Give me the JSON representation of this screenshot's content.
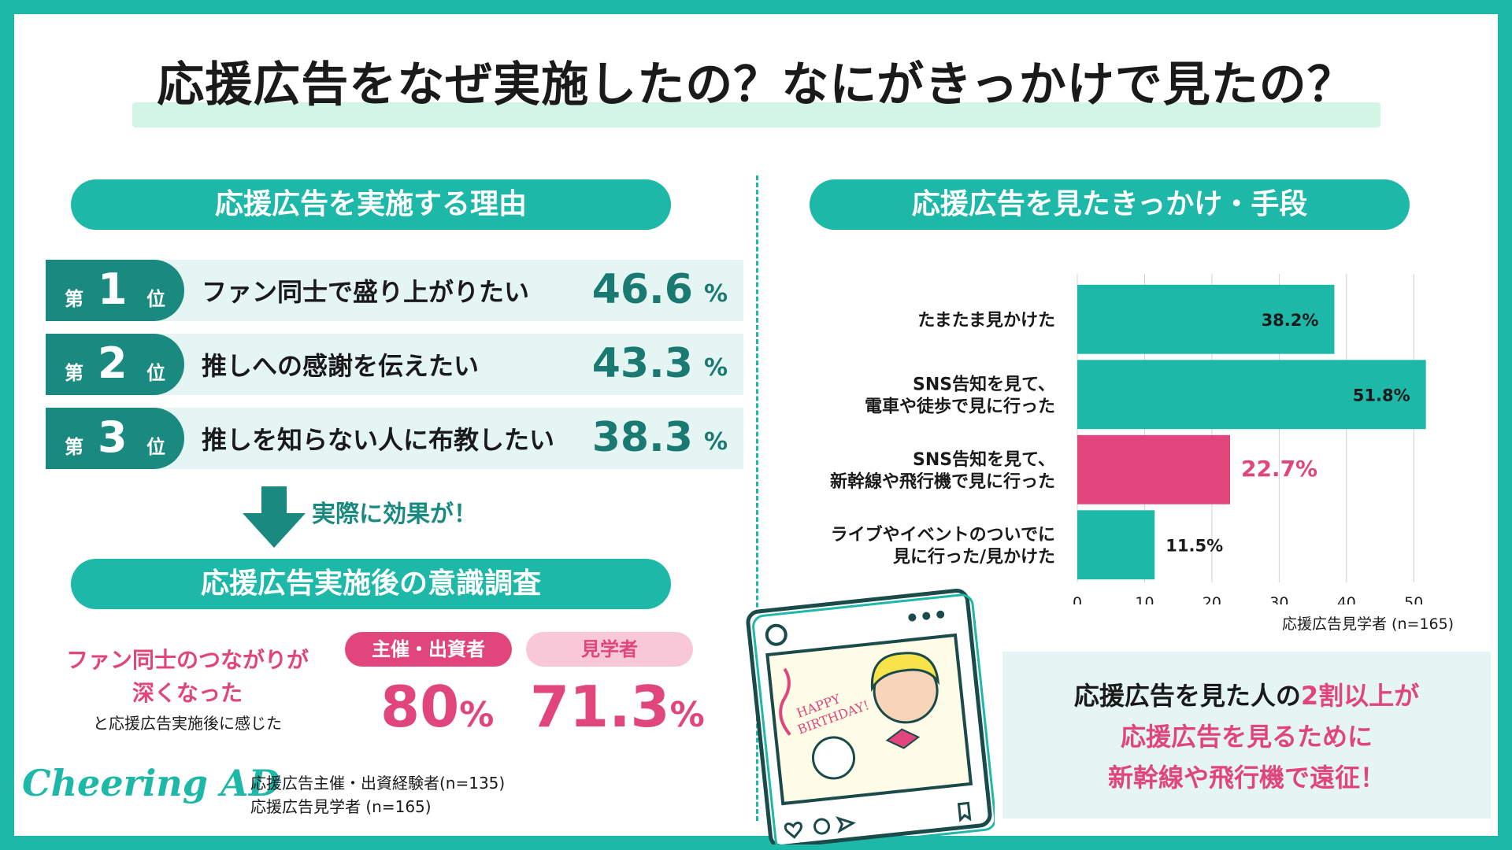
{
  "title": "応援広告をなぜ実施したの？なにがきっかけで見たの？",
  "reasons": {
    "header": "応援広告を実施する理由",
    "rank_prefix": "第",
    "rank_suffix": "位",
    "pct_sign": "%",
    "items": [
      {
        "rank": "1",
        "label": "ファン同士で盛り上がりたい",
        "value": "46.6"
      },
      {
        "rank": "2",
        "label": "推しへの感謝を伝えたい",
        "value": "43.3"
      },
      {
        "rank": "3",
        "label": "推しを知らない人に布教したい",
        "value": "38.3"
      }
    ]
  },
  "effect_text": "実際に効果が！",
  "survey": {
    "header": "応援広告実施後の意識調査",
    "line1": "ファン同士のつながりが",
    "line2": "深くなった",
    "line3": "と応援広告実施後に感じた",
    "host_label": "主催・出資者",
    "host_value": "80",
    "visitor_label": "見学者",
    "visitor_value": "71.3",
    "pct_sign": "%"
  },
  "logo_text": "Cheering AD",
  "notes": [
    "応援広告主催・出資経験者(n=135)",
    "応援広告見学者 (n=165)"
  ],
  "chart_header": "応援広告を見たきっかけ・手段",
  "chart_data": {
    "type": "bar",
    "orientation": "horizontal",
    "categories": [
      [
        "たまたま見かけた"
      ],
      [
        "SNS告知を見て、",
        "電車や徒歩で見に行った"
      ],
      [
        "SNS告知を見て、",
        "新幹線や飛行機で見に行った"
      ],
      [
        "ライブやイベントのついでに",
        "見に行った/見かけた"
      ]
    ],
    "values": [
      38.2,
      51.8,
      22.7,
      11.5
    ],
    "value_labels": [
      "38.2%",
      "51.8%",
      "22.7%",
      "11.5%"
    ],
    "highlight_index": 2,
    "colors": {
      "bar": "#1db8a8",
      "highlight": "#e0457b",
      "grid": "#d0d0d0"
    },
    "xlim": [
      0,
      55
    ],
    "xticks": [
      0,
      10,
      20,
      30,
      40,
      50
    ],
    "grid": true,
    "note": "応援広告見学者 (n=165)"
  },
  "callout": {
    "line1_a": "応援広告を見た人の",
    "line1_b": "2割以上が",
    "line2": "応援広告を見るために",
    "line3": "新幹線や飛行機で遠征！"
  },
  "illustration": {
    "card_text": [
      "HAPPY",
      "BIRTHDAY!"
    ]
  }
}
